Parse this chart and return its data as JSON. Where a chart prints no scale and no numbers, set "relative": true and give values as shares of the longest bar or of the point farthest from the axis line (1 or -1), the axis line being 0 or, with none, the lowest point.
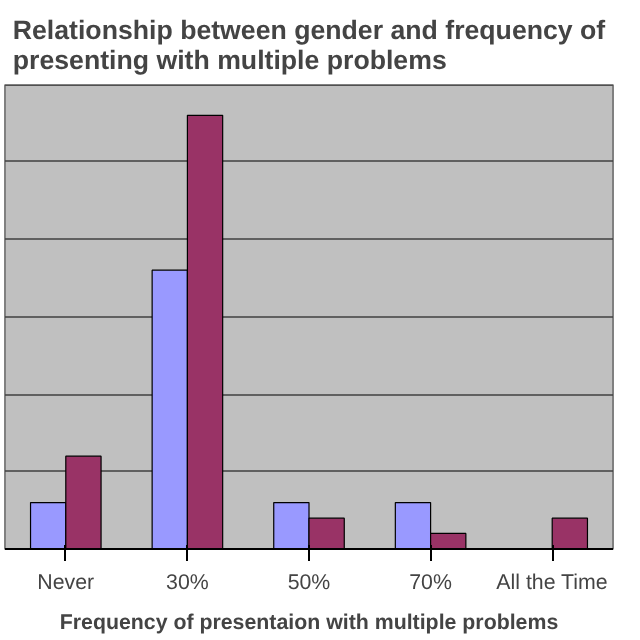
{
  "chart_data": {
    "type": "bar",
    "title": "Relationship between gender and frequency of\npresenting with multiple problems",
    "xlabel": "Frequency of presentaion with multiple problems",
    "categories": [
      "Never",
      "30%",
      "50%",
      "70%",
      "All the Time"
    ],
    "relative": true,
    "grid": "y",
    "series": [
      {
        "color": "#9999ff",
        "values": [
          0.107,
          0.643,
          0.107,
          0.107,
          0
        ]
      },
      {
        "color": "#993366",
        "values": [
          0.214,
          1,
          0.071,
          0.036,
          0.071
        ]
      }
    ]
  }
}
